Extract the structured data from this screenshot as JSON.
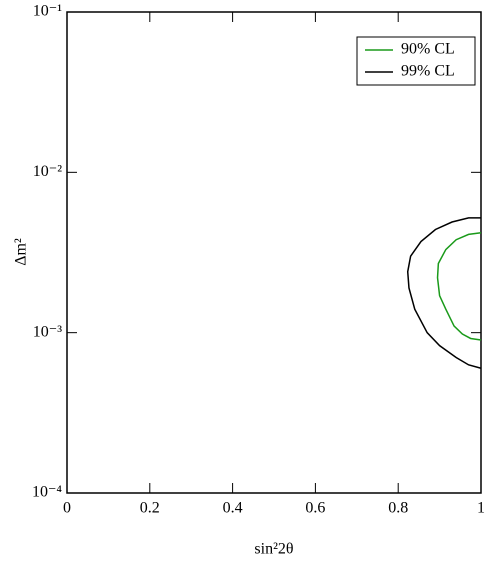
{
  "chart_data": {
    "type": "line",
    "x_label": "sin²2θ",
    "y_label": "Δm²",
    "xlim": [
      0,
      1
    ],
    "xticks": [
      0,
      0.2,
      0.4,
      0.6,
      0.8,
      1
    ],
    "ylim": [
      0.0001,
      0.1
    ],
    "yticks": [
      {
        "value": 0.0001,
        "label": "10⁻⁴"
      },
      {
        "value": 0.001,
        "label": "10⁻³"
      },
      {
        "value": 0.01,
        "label": "10⁻²"
      },
      {
        "value": 0.1,
        "label": "10⁻¹"
      }
    ],
    "y_log": true,
    "legend": "upper right",
    "series": [
      {
        "name": "90% CL",
        "color": "#1a9a1a",
        "x": [
          1,
          0.97,
          0.94,
          0.915,
          0.897,
          0.895,
          0.9,
          0.915,
          0.935,
          0.955,
          0.975,
          1
        ],
        "values": [
          0.0042,
          0.0041,
          0.0038,
          0.0033,
          0.0027,
          0.0022,
          0.0017,
          0.0014,
          0.0011,
          0.00098,
          0.00092,
          0.0009
        ]
      },
      {
        "name": "99% CL",
        "color": "#000000",
        "x": [
          1,
          0.97,
          0.93,
          0.89,
          0.855,
          0.83,
          0.823,
          0.826,
          0.84,
          0.87,
          0.9,
          0.94,
          0.97,
          1
        ],
        "values": [
          0.0052,
          0.0052,
          0.0049,
          0.0044,
          0.0037,
          0.003,
          0.0024,
          0.0019,
          0.0014,
          0.001,
          0.00083,
          0.0007,
          0.00063,
          0.0006
        ]
      }
    ]
  }
}
